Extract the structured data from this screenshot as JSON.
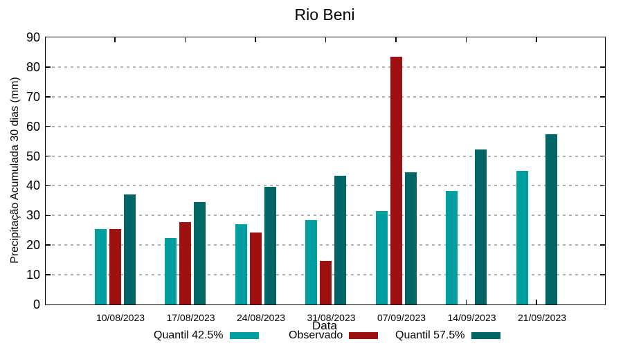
{
  "chart_data": {
    "type": "bar",
    "title": "Rio Beni",
    "xlabel": "Data",
    "ylabel": "Precipitação Acumulada 30 dias (mm)",
    "categories": [
      "10/08/2023",
      "17/08/2023",
      "24/08/2023",
      "31/08/2023",
      "07/09/2023",
      "14/09/2023",
      "21/09/2023"
    ],
    "series": [
      {
        "name": "Quantil 42.5%",
        "color": "#009E9E",
        "values": [
          25.5,
          22.4,
          27.0,
          28.5,
          31.5,
          38.3,
          44.9
        ]
      },
      {
        "name": "Observado",
        "color": "#9D1111",
        "values": [
          25.5,
          27.7,
          24.2,
          14.8,
          83.4,
          null,
          null
        ]
      },
      {
        "name": "Quantil 57.5%",
        "color": "#006666",
        "values": [
          37.1,
          34.5,
          39.6,
          43.3,
          44.6,
          52.2,
          57.4
        ]
      }
    ],
    "ylim": [
      0,
      90
    ],
    "ytick_step": 10,
    "grid": true,
    "grid_style": "dotted",
    "legend_position": "bottom"
  }
}
